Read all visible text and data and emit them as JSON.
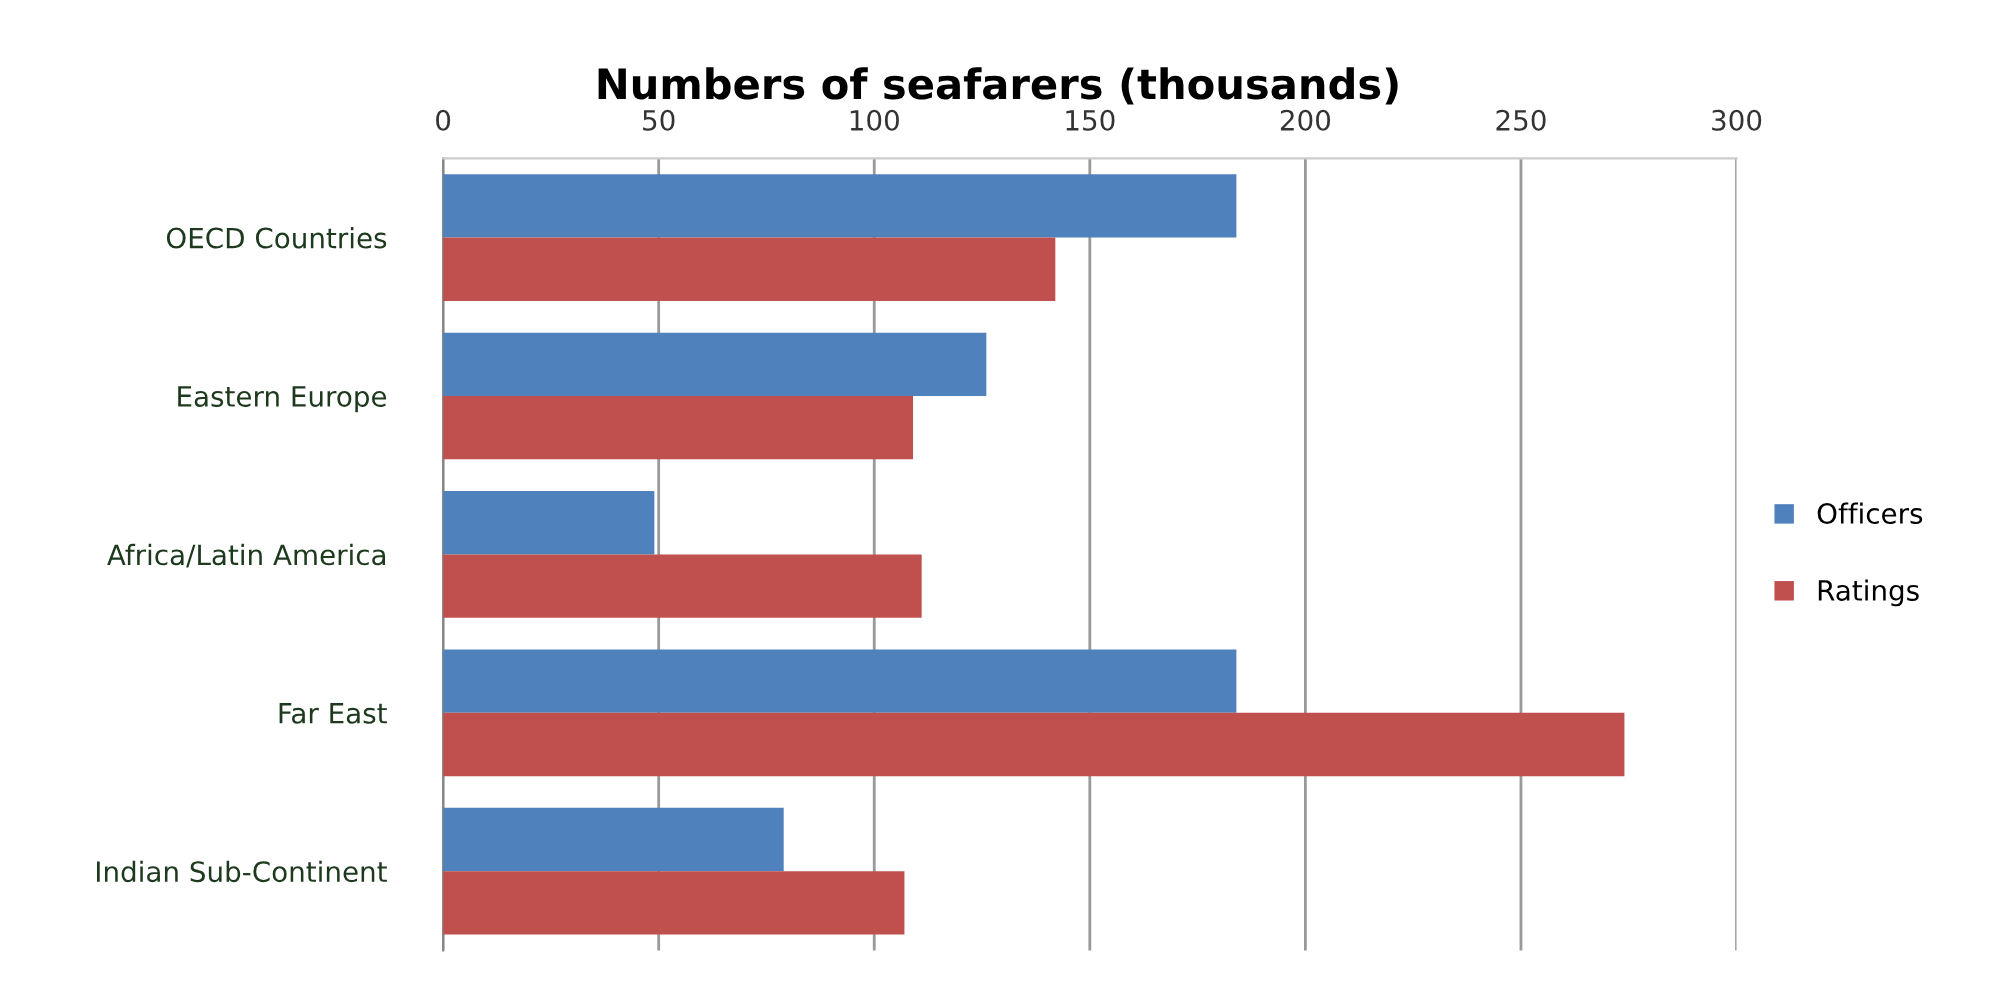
{
  "chart_data": {
    "type": "bar",
    "orientation": "horizontal",
    "title": "Numbers of seafarers (thousands)",
    "categories": [
      "OECD Countries",
      "Eastern Europe",
      "Africa/Latin America",
      "Far East",
      "Indian Sub-Continent"
    ],
    "series": [
      {
        "name": "Officers",
        "color": "#4f81bd",
        "values": [
          184,
          126,
          49,
          184,
          79
        ]
      },
      {
        "name": "Ratings",
        "color": "#c0504d",
        "values": [
          142,
          109,
          111,
          274,
          107
        ]
      }
    ],
    "xlim": [
      0,
      300
    ],
    "xticks": [
      0,
      50,
      100,
      150,
      200,
      250,
      300
    ],
    "grid": "x",
    "legend": "right"
  }
}
